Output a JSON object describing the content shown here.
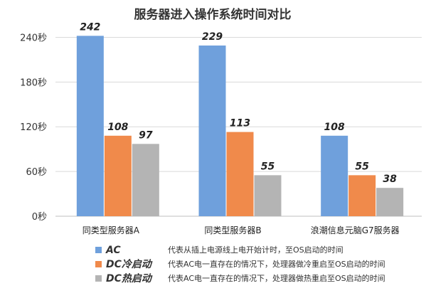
{
  "chart_data": {
    "type": "bar",
    "title": "服务器进入操作系统时间对比",
    "categories": [
      "同类型服务器A",
      "同类型服务器B",
      "浪潮信息元脑G7服务器"
    ],
    "series": [
      {
        "name": "AC",
        "values": [
          242,
          229,
          108
        ],
        "color": "#6fa0dc"
      },
      {
        "name": "DC冷启动",
        "values": [
          108,
          113,
          55
        ],
        "color": "#f08a4b"
      },
      {
        "name": "DC热启动",
        "values": [
          97,
          55,
          38
        ],
        "color": "#b4b4b4"
      }
    ],
    "y_ticks": [
      "0秒",
      "60秒",
      "120秒",
      "180秒",
      "240秒"
    ],
    "ylim": [
      0,
      250
    ],
    "grid": true,
    "legend_position": "bottom",
    "legend_descriptions": [
      "代表从插上电源线上电开始计时，至OS启动的时间",
      "代表AC电一直存在的情况下，处理器做冷重启至OS启动的时间",
      "代表AC电一直存在的情况下，处理器做热重启至OS启动的时间"
    ]
  }
}
